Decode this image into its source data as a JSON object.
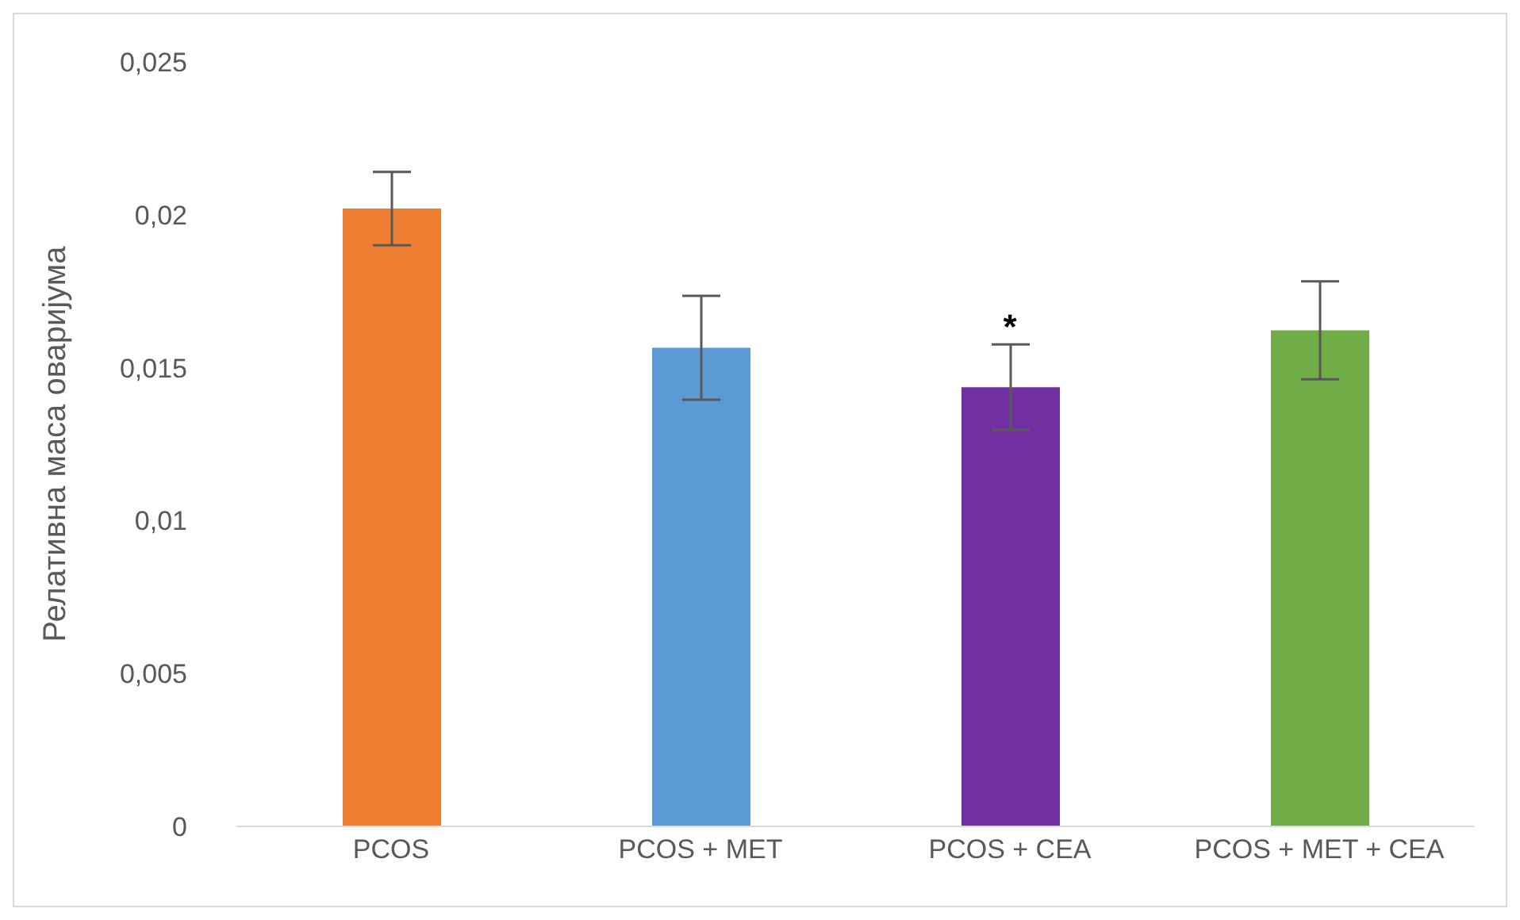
{
  "chart_data": {
    "type": "bar",
    "ylabel": "Релативна маса оваријума",
    "categories": [
      "PCOS",
      "PCOS + MET",
      "PCOS + CEA",
      "PCOS + MET + CEA"
    ],
    "values": [
      0.0202,
      0.01565,
      0.01436,
      0.01622
    ],
    "colors": [
      "#ed7d31",
      "#5b9bd5",
      "#7030a0",
      "#70ad47"
    ],
    "errors": [
      0.0012,
      0.0017,
      0.0014,
      0.0016
    ],
    "ylim": [
      0,
      0.025
    ],
    "yticks": [
      {
        "value": 0,
        "label": "0"
      },
      {
        "value": 0.005,
        "label": "0,005"
      },
      {
        "value": 0.01,
        "label": "0,01"
      },
      {
        "value": 0.015,
        "label": "0,015"
      },
      {
        "value": 0.02,
        "label": "0,02"
      },
      {
        "value": 0.025,
        "label": "0,025"
      }
    ],
    "annotations": [
      {
        "text": "*",
        "x": "PCOS + CEA",
        "y": 0.0157
      }
    ],
    "grid": false,
    "legend": false
  }
}
